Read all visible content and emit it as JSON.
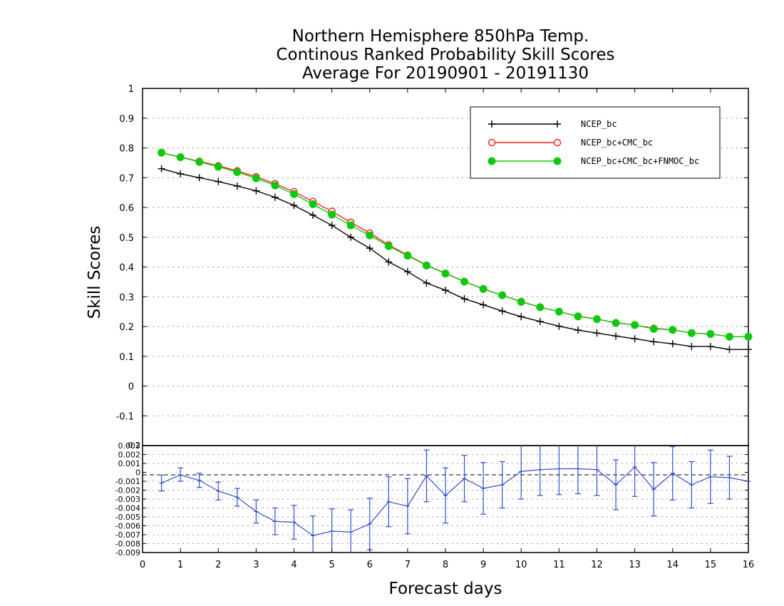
{
  "chart_data": [
    {
      "type": "line",
      "title_lines": [
        "Northern Hemisphere 850hPa Temp.",
        "Continous Ranked Probability Skill Scores",
        "Average For 20190901 - 20191130"
      ],
      "xlabel": "Forecast days",
      "ylabel": "Skill Scores",
      "xlim": [
        0,
        16
      ],
      "ylim": [
        -0.2,
        1
      ],
      "x_ticks": [
        "0",
        "1",
        "2",
        "3",
        "4",
        "5",
        "6",
        "7",
        "8",
        "9",
        "10",
        "11",
        "12",
        "13",
        "14",
        "15",
        "16"
      ],
      "y_ticks": [
        "-0.1",
        "0",
        "0.1",
        "0.2",
        "0.3",
        "0.4",
        "0.5",
        "0.6",
        "0.7",
        "0.8",
        "0.9",
        "1"
      ],
      "grid": "dotted horizontal",
      "legend_position": "top-right",
      "x": [
        0.5,
        1,
        1.5,
        2,
        2.5,
        3,
        3.5,
        4,
        4.5,
        5,
        5.5,
        6,
        6.5,
        7,
        7.5,
        8,
        8.5,
        9,
        9.5,
        10,
        10.5,
        11,
        11.5,
        12,
        12.5,
        13,
        13.5,
        14,
        14.5,
        15,
        15.5,
        16
      ],
      "series": [
        {
          "name": "NCEP_bc",
          "color": "#000000",
          "marker": "plus",
          "values": [
            0.73,
            0.713,
            0.7,
            0.687,
            0.672,
            0.656,
            0.634,
            0.607,
            0.574,
            0.54,
            0.5,
            0.463,
            0.417,
            0.384,
            0.346,
            0.322,
            0.293,
            0.273,
            0.252,
            0.233,
            0.217,
            0.201,
            0.188,
            0.178,
            0.168,
            0.159,
            0.149,
            0.142,
            0.133,
            0.133,
            0.123,
            0.123
          ]
        },
        {
          "name": "NCEP_bc+CMC_bc",
          "color": "#ff2020",
          "marker": "open-circle",
          "values": [
            0.784,
            0.769,
            0.755,
            0.74,
            0.723,
            0.703,
            0.68,
            0.653,
            0.62,
            0.587,
            0.55,
            0.514,
            0.474,
            0.44,
            0.406,
            0.379,
            0.351,
            0.327,
            0.305,
            0.284,
            0.265,
            0.25,
            0.235,
            0.225,
            0.213,
            0.205,
            0.194,
            0.189,
            0.178,
            0.175,
            0.166,
            0.166
          ]
        },
        {
          "name": "NCEP_bc+CMC_bc+FNMOC_bc",
          "color": "#10c810",
          "marker": "filled-circle",
          "values": [
            0.784,
            0.769,
            0.753,
            0.737,
            0.719,
            0.698,
            0.674,
            0.645,
            0.611,
            0.576,
            0.54,
            0.506,
            0.47,
            0.438,
            0.405,
            0.378,
            0.351,
            0.326,
            0.305,
            0.283,
            0.265,
            0.25,
            0.234,
            0.225,
            0.212,
            0.205,
            0.192,
            0.189,
            0.178,
            0.175,
            0.166,
            0.166
          ]
        }
      ]
    },
    {
      "type": "line",
      "title": "",
      "xlim": [
        0,
        16
      ],
      "ylim": [
        -0.009,
        0.003
      ],
      "y_ticks": [
        "-0.009",
        "-0.008",
        "-0.007",
        "-0.006",
        "-0.005",
        "-0.004",
        "-0.003",
        "-0.002",
        "-0.001",
        "0",
        "0.001",
        "0.002",
        "0.003"
      ],
      "top_label": "-0.2",
      "grid": "dotted horizontal",
      "reference_line": 0,
      "error_bars": true,
      "series": [
        {
          "name": "",
          "color": "#3050d0",
          "x": [
            0.5,
            1,
            1.5,
            2,
            2.5,
            3,
            3.5,
            4,
            4.5,
            5,
            5.5,
            6,
            6.5,
            7,
            7.5,
            8,
            8.5,
            9,
            9.5,
            10,
            10.5,
            11,
            11.5,
            12,
            12.5,
            13,
            13.5,
            14,
            14.5,
            15,
            15.5,
            16
          ],
          "values": [
            -0.0012,
            -0.0003,
            -0.0009,
            -0.0021,
            -0.0028,
            -0.0044,
            -0.0055,
            -0.0056,
            -0.0071,
            -0.0066,
            -0.0067,
            -0.0058,
            -0.0033,
            -0.0038,
            -0.0004,
            -0.0026,
            -0.0007,
            -0.0018,
            -0.0014,
            0.0001,
            0.0003,
            0.0004,
            0.0004,
            0.0003,
            -0.0014,
            0.0006,
            -0.0019,
            -0.0001,
            -0.0014,
            -0.0005,
            -0.0006,
            -0.001
          ],
          "lower": [
            -0.0021,
            -0.001,
            -0.0017,
            -0.0031,
            -0.0038,
            -0.0057,
            -0.007,
            -0.0075,
            -0.0093,
            -0.0091,
            -0.0092,
            -0.0087,
            -0.0061,
            -0.0069,
            -0.0033,
            -0.0057,
            -0.0033,
            -0.0047,
            -0.004,
            -0.003,
            -0.0026,
            -0.0025,
            -0.0024,
            -0.0026,
            -0.0042,
            -0.0027,
            -0.0049,
            -0.0031,
            -0.004,
            -0.0035,
            -0.003,
            -0.001
          ],
          "upper": [
            -0.0003,
            0.0005,
            -0.0001,
            -0.0011,
            -0.0018,
            -0.0031,
            -0.004,
            -0.0037,
            -0.0049,
            -0.0041,
            -0.0042,
            -0.0029,
            -0.0005,
            -0.0007,
            0.0025,
            0.0005,
            0.0019,
            0.0011,
            0.0012,
            0.0032,
            0.0032,
            0.0033,
            0.0032,
            0.0032,
            0.0014,
            0.0039,
            0.0011,
            0.0029,
            0.0012,
            0.0025,
            0.0018,
            -0.001
          ]
        }
      ]
    }
  ]
}
